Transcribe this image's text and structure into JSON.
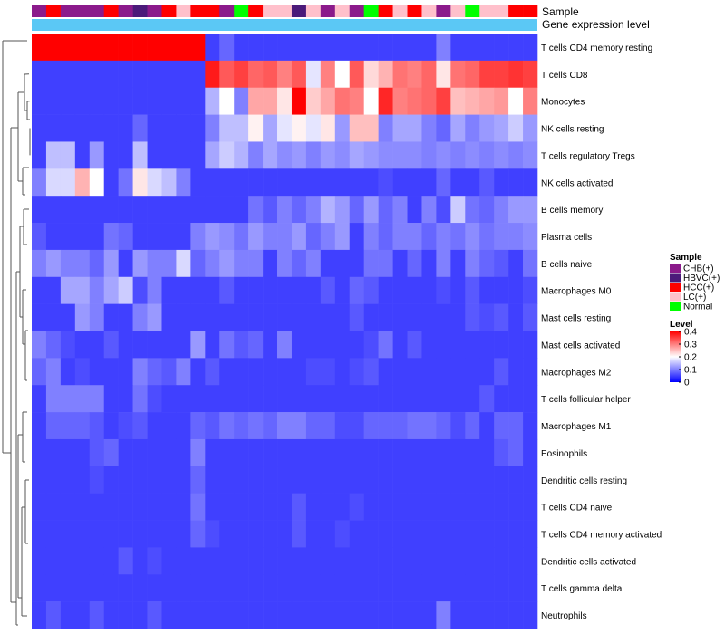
{
  "chart_data": {
    "type": "heatmap",
    "annotation_labels": [
      "Sample",
      "Gene expression level"
    ],
    "row_labels": [
      "T cells CD4 memory resting",
      "T cells CD8",
      "Monocytes",
      "NK cells resting",
      "T cells regulatory  Tregs",
      "NK cells activated",
      "B cells memory",
      "Plasma cells",
      "B cells naive",
      "Macrophages M0",
      "Mast cells resting",
      "Mast cells activated",
      "Macrophages M2",
      "T cells follicular helper",
      "Macrophages M1",
      "Eosinophils",
      "Dendritic cells resting",
      "T cells CD4 naive",
      "T cells CD4 memory activated",
      "Dendritic cells activated",
      "T cells gamma delta",
      "Neutrophils"
    ],
    "sample_groups": [
      "CHB(+)",
      "HCC(+)",
      "CHB(+)",
      "CHB(+)",
      "CHB(+)",
      "HCC(+)",
      "CHB(+)",
      "HBVC(+)",
      "CHB(+)",
      "HCC(+)",
      "LC(+)",
      "HCC(+)",
      "HCC(+)",
      "CHB(+)",
      "Normal",
      "HCC(+)",
      "LC(+)",
      "LC(+)",
      "HBVC(+)",
      "LC(+)",
      "CHB(+)",
      "LC(+)",
      "CHB(+)",
      "Normal",
      "HCC(+)",
      "LC(+)",
      "HCC(+)",
      "LC(+)",
      "CHB(+)",
      "LC(+)",
      "Normal",
      "LC(+)",
      "LC(+)",
      "HCC(+)",
      "HCC(+)"
    ],
    "group_colors": {
      "CHB(+)": "#8B1A8B",
      "HBVC(+)": "#4B1A7A",
      "HCC(+)": "#FF0000",
      "LC(+)": "#FFC0CB",
      "Normal": "#00FF00"
    },
    "values": [
      [
        0.4,
        0.4,
        0.4,
        0.4,
        0.4,
        0.4,
        0.4,
        0.4,
        0.4,
        0.4,
        0.4,
        0.4,
        0.05,
        0.08,
        0.05,
        0.05,
        0.05,
        0.05,
        0.05,
        0.05,
        0.05,
        0.05,
        0.05,
        0.05,
        0.05,
        0.05,
        0.05,
        0.05,
        0.1,
        0.05,
        0.05,
        0.05,
        0.05,
        0.05,
        0.05
      ],
      [
        0.05,
        0.05,
        0.05,
        0.05,
        0.05,
        0.05,
        0.05,
        0.05,
        0.05,
        0.05,
        0.05,
        0.05,
        0.38,
        0.33,
        0.35,
        0.32,
        0.33,
        0.3,
        0.33,
        0.18,
        0.3,
        0.2,
        0.33,
        0.23,
        0.26,
        0.31,
        0.3,
        0.32,
        0.22,
        0.31,
        0.32,
        0.35,
        0.35,
        0.36,
        0.35
      ],
      [
        0.05,
        0.05,
        0.05,
        0.05,
        0.05,
        0.05,
        0.05,
        0.05,
        0.05,
        0.05,
        0.05,
        0.05,
        0.14,
        0.2,
        0.1,
        0.27,
        0.27,
        0.22,
        0.4,
        0.24,
        0.27,
        0.31,
        0.3,
        0.2,
        0.37,
        0.3,
        0.31,
        0.32,
        0.35,
        0.25,
        0.26,
        0.27,
        0.28,
        0.2,
        0.3
      ],
      [
        0.05,
        0.05,
        0.05,
        0.05,
        0.05,
        0.05,
        0.05,
        0.08,
        0.05,
        0.05,
        0.05,
        0.05,
        0.1,
        0.15,
        0.15,
        0.21,
        0.13,
        0.18,
        0.21,
        0.18,
        0.22,
        0.12,
        0.25,
        0.25,
        0.1,
        0.13,
        0.13,
        0.1,
        0.08,
        0.13,
        0.1,
        0.12,
        0.13,
        0.16,
        0.12
      ],
      [
        0.05,
        0.15,
        0.15,
        0.05,
        0.12,
        0.05,
        0.05,
        0.15,
        0.05,
        0.05,
        0.05,
        0.05,
        0.13,
        0.16,
        0.14,
        0.1,
        0.13,
        0.11,
        0.12,
        0.1,
        0.12,
        0.11,
        0.13,
        0.12,
        0.11,
        0.11,
        0.11,
        0.1,
        0.11,
        0.1,
        0.11,
        0.1,
        0.11,
        0.1,
        0.11
      ],
      [
        0.1,
        0.17,
        0.17,
        0.26,
        0.2,
        0.05,
        0.09,
        0.22,
        0.17,
        0.15,
        0.1,
        0.05,
        0.05,
        0.05,
        0.05,
        0.05,
        0.05,
        0.05,
        0.05,
        0.05,
        0.05,
        0.05,
        0.05,
        0.05,
        0.06,
        0.05,
        0.05,
        0.05,
        0.08,
        0.05,
        0.05,
        0.07,
        0.05,
        0.05,
        0.05
      ],
      [
        0.05,
        0.05,
        0.05,
        0.05,
        0.05,
        0.05,
        0.05,
        0.05,
        0.05,
        0.05,
        0.05,
        0.05,
        0.05,
        0.05,
        0.05,
        0.09,
        0.07,
        0.1,
        0.08,
        0.1,
        0.14,
        0.12,
        0.08,
        0.12,
        0.08,
        0.1,
        0.05,
        0.1,
        0.06,
        0.16,
        0.09,
        0.08,
        0.1,
        0.12,
        0.12
      ],
      [
        0.07,
        0.05,
        0.05,
        0.05,
        0.05,
        0.09,
        0.08,
        0.05,
        0.05,
        0.05,
        0.05,
        0.1,
        0.12,
        0.11,
        0.09,
        0.12,
        0.1,
        0.1,
        0.12,
        0.08,
        0.1,
        0.12,
        0.05,
        0.1,
        0.08,
        0.1,
        0.1,
        0.08,
        0.1,
        0.09,
        0.11,
        0.09,
        0.1,
        0.1,
        0.11
      ],
      [
        0.1,
        0.12,
        0.1,
        0.1,
        0.08,
        0.12,
        0.05,
        0.12,
        0.1,
        0.1,
        0.17,
        0.08,
        0.1,
        0.12,
        0.1,
        0.1,
        0.05,
        0.1,
        0.08,
        0.1,
        0.05,
        0.05,
        0.05,
        0.09,
        0.09,
        0.05,
        0.08,
        0.05,
        0.1,
        0.05,
        0.1,
        0.08,
        0.07,
        0.05,
        0.09
      ],
      [
        0.05,
        0.05,
        0.13,
        0.13,
        0.1,
        0.13,
        0.16,
        0.06,
        0.1,
        0.05,
        0.05,
        0.05,
        0.05,
        0.07,
        0.05,
        0.05,
        0.05,
        0.05,
        0.05,
        0.05,
        0.07,
        0.05,
        0.08,
        0.07,
        0.05,
        0.05,
        0.05,
        0.05,
        0.06,
        0.05,
        0.07,
        0.05,
        0.05,
        0.05,
        0.06
      ],
      [
        0.05,
        0.05,
        0.05,
        0.12,
        0.1,
        0.05,
        0.05,
        0.1,
        0.12,
        0.05,
        0.05,
        0.05,
        0.05,
        0.05,
        0.05,
        0.05,
        0.05,
        0.05,
        0.05,
        0.05,
        0.05,
        0.05,
        0.07,
        0.05,
        0.05,
        0.05,
        0.05,
        0.05,
        0.05,
        0.05,
        0.07,
        0.06,
        0.07,
        0.05,
        0.07
      ],
      [
        0.1,
        0.08,
        0.06,
        0.05,
        0.05,
        0.07,
        0.05,
        0.05,
        0.05,
        0.05,
        0.05,
        0.12,
        0.05,
        0.09,
        0.07,
        0.08,
        0.05,
        0.1,
        0.05,
        0.05,
        0.05,
        0.05,
        0.05,
        0.06,
        0.09,
        0.05,
        0.07,
        0.05,
        0.05,
        0.05,
        0.05,
        0.05,
        0.05,
        0.05,
        0.05
      ],
      [
        0.08,
        0.1,
        0.05,
        0.06,
        0.05,
        0.05,
        0.05,
        0.1,
        0.08,
        0.07,
        0.1,
        0.05,
        0.07,
        0.05,
        0.05,
        0.05,
        0.05,
        0.05,
        0.05,
        0.06,
        0.06,
        0.05,
        0.06,
        0.07,
        0.05,
        0.05,
        0.05,
        0.05,
        0.05,
        0.05,
        0.05,
        0.05,
        0.07,
        0.05,
        0.05
      ],
      [
        0.05,
        0.1,
        0.1,
        0.1,
        0.1,
        0.05,
        0.05,
        0.09,
        0.06,
        0.05,
        0.05,
        0.05,
        0.05,
        0.05,
        0.05,
        0.05,
        0.05,
        0.05,
        0.05,
        0.05,
        0.05,
        0.05,
        0.05,
        0.05,
        0.05,
        0.05,
        0.05,
        0.05,
        0.05,
        0.05,
        0.05,
        0.07,
        0.05,
        0.05,
        0.05
      ],
      [
        0.05,
        0.08,
        0.08,
        0.08,
        0.07,
        0.05,
        0.06,
        0.07,
        0.05,
        0.05,
        0.05,
        0.08,
        0.07,
        0.09,
        0.08,
        0.09,
        0.08,
        0.1,
        0.1,
        0.08,
        0.08,
        0.06,
        0.06,
        0.08,
        0.08,
        0.08,
        0.09,
        0.09,
        0.08,
        0.06,
        0.08,
        0.05,
        0.08,
        0.08,
        0.05
      ],
      [
        0.05,
        0.05,
        0.05,
        0.05,
        0.07,
        0.08,
        0.05,
        0.05,
        0.05,
        0.05,
        0.05,
        0.1,
        0.05,
        0.05,
        0.05,
        0.05,
        0.05,
        0.05,
        0.05,
        0.05,
        0.05,
        0.05,
        0.05,
        0.05,
        0.05,
        0.05,
        0.05,
        0.05,
        0.05,
        0.05,
        0.05,
        0.05,
        0.07,
        0.08,
        0.05
      ],
      [
        0.05,
        0.05,
        0.05,
        0.05,
        0.06,
        0.05,
        0.05,
        0.05,
        0.05,
        0.05,
        0.05,
        0.08,
        0.05,
        0.05,
        0.05,
        0.05,
        0.05,
        0.05,
        0.05,
        0.05,
        0.05,
        0.05,
        0.05,
        0.05,
        0.05,
        0.05,
        0.05,
        0.05,
        0.05,
        0.05,
        0.05,
        0.05,
        0.05,
        0.05,
        0.05
      ],
      [
        0.05,
        0.05,
        0.05,
        0.05,
        0.05,
        0.05,
        0.05,
        0.05,
        0.05,
        0.05,
        0.05,
        0.09,
        0.05,
        0.05,
        0.05,
        0.05,
        0.05,
        0.05,
        0.07,
        0.05,
        0.05,
        0.05,
        0.06,
        0.05,
        0.05,
        0.05,
        0.05,
        0.05,
        0.05,
        0.05,
        0.05,
        0.05,
        0.05,
        0.05,
        0.05
      ],
      [
        0.05,
        0.05,
        0.05,
        0.05,
        0.05,
        0.05,
        0.05,
        0.05,
        0.05,
        0.05,
        0.05,
        0.08,
        0.06,
        0.05,
        0.05,
        0.05,
        0.05,
        0.05,
        0.07,
        0.05,
        0.05,
        0.06,
        0.05,
        0.05,
        0.05,
        0.05,
        0.05,
        0.05,
        0.05,
        0.05,
        0.05,
        0.05,
        0.05,
        0.05,
        0.05
      ],
      [
        0.05,
        0.05,
        0.05,
        0.05,
        0.05,
        0.05,
        0.07,
        0.05,
        0.06,
        0.05,
        0.05,
        0.05,
        0.05,
        0.05,
        0.05,
        0.05,
        0.05,
        0.05,
        0.05,
        0.05,
        0.05,
        0.05,
        0.05,
        0.05,
        0.05,
        0.05,
        0.05,
        0.05,
        0.05,
        0.05,
        0.05,
        0.05,
        0.05,
        0.05,
        0.05
      ],
      [
        0.05,
        0.05,
        0.05,
        0.05,
        0.05,
        0.05,
        0.05,
        0.05,
        0.05,
        0.05,
        0.05,
        0.05,
        0.05,
        0.05,
        0.05,
        0.05,
        0.05,
        0.05,
        0.05,
        0.05,
        0.05,
        0.05,
        0.05,
        0.05,
        0.05,
        0.05,
        0.05,
        0.05,
        0.05,
        0.05,
        0.05,
        0.05,
        0.05,
        0.05,
        0.05
      ],
      [
        0.05,
        0.07,
        0.05,
        0.05,
        0.07,
        0.05,
        0.05,
        0.05,
        0.07,
        0.05,
        0.05,
        0.05,
        0.05,
        0.05,
        0.05,
        0.05,
        0.05,
        0.05,
        0.05,
        0.05,
        0.05,
        0.05,
        0.05,
        0.05,
        0.05,
        0.05,
        0.05,
        0.05,
        0.1,
        0.05,
        0.05,
        0.05,
        0.05,
        0.05,
        0.05
      ]
    ],
    "legend": {
      "sample_title": "Sample",
      "sample_entries": [
        "CHB(+)",
        "HBVC(+)",
        "HCC(+)",
        "LC(+)",
        "Normal"
      ],
      "level_title": "Level",
      "level_ticks": [
        0.4,
        0.3,
        0.2,
        0.1,
        0
      ],
      "level_tick_labels": [
        "0.4",
        "0.3",
        "0.2",
        "0.1",
        "0"
      ],
      "scale_colors": [
        "#0000FF",
        "#FFFFFF",
        "#FF0000"
      ],
      "scale_range": [
        0,
        0.4
      ]
    },
    "expression_bar_color": "#5BC8F5",
    "title": "",
    "xlabel": "",
    "ylabel": ""
  }
}
